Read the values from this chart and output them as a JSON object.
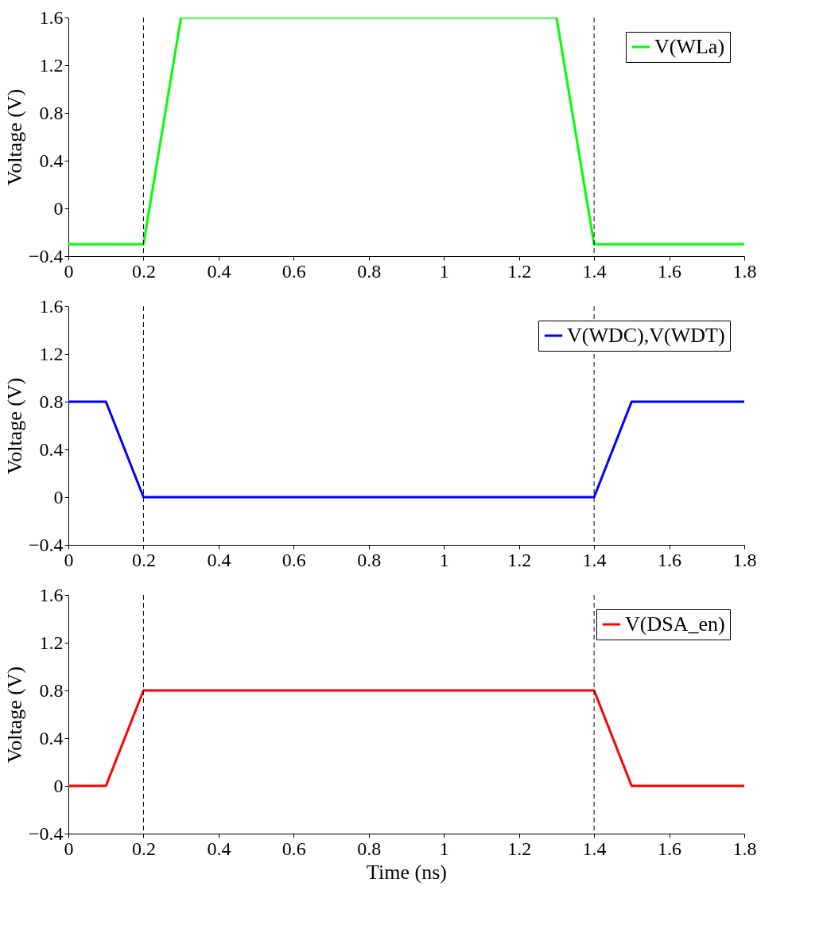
{
  "chart_data": [
    {
      "type": "line",
      "ylabel": "Voltage (V)",
      "x": [
        0,
        0.2,
        0.3,
        1.3,
        1.4,
        1.8
      ],
      "series": [
        {
          "name": "V(WLa)",
          "color": "#00ff00",
          "values": [
            -0.3,
            -0.3,
            1.6,
            1.6,
            -0.3,
            -0.3
          ]
        }
      ],
      "xlim": [
        0,
        1.8
      ],
      "ylim": [
        -0.4,
        1.6
      ],
      "xticks": [
        0,
        0.2,
        0.4,
        0.6,
        0.8,
        1,
        1.2,
        1.4,
        1.6,
        1.8
      ],
      "yticks": [
        -0.4,
        0,
        0.4,
        0.8,
        1.2,
        1.6
      ],
      "ref_lines": [
        {
          "axis": "x",
          "value": 0.2,
          "color": "#000000",
          "line_style": "dashed"
        },
        {
          "axis": "x",
          "value": 1.4,
          "color": "#000000",
          "line_style": "dashed"
        }
      ],
      "grid": false,
      "legend": "top right",
      "line_style": "solid",
      "marker": "none"
    },
    {
      "type": "line",
      "ylabel": "Voltage (V)",
      "x": [
        0,
        0.1,
        0.2,
        1.4,
        1.5,
        1.8
      ],
      "series": [
        {
          "name": "V(WDC),V(WDT)",
          "color": "#0000ff",
          "values": [
            0.8,
            0.8,
            0,
            0,
            0.8,
            0.8
          ]
        }
      ],
      "xlim": [
        0,
        1.8
      ],
      "ylim": [
        -0.4,
        1.6
      ],
      "xticks": [
        0,
        0.2,
        0.4,
        0.6,
        0.8,
        1,
        1.2,
        1.4,
        1.6,
        1.8
      ],
      "yticks": [
        -0.4,
        0,
        0.4,
        0.8,
        1.2,
        1.6
      ],
      "ref_lines": [
        {
          "axis": "x",
          "value": 0.2,
          "color": "#000000",
          "line_style": "dashed"
        },
        {
          "axis": "x",
          "value": 1.4,
          "color": "#000000",
          "line_style": "dashed"
        }
      ],
      "grid": false,
      "legend": "top right",
      "line_style": "solid",
      "marker": "none"
    },
    {
      "type": "line",
      "xlabel": "Time (ns)",
      "ylabel": "Voltage (V)",
      "x": [
        0,
        0.1,
        0.2,
        1.4,
        1.5,
        1.8
      ],
      "series": [
        {
          "name": "V(DSA_en)",
          "color": "#ff0000",
          "values": [
            0,
            0,
            0.8,
            0.8,
            0,
            0
          ]
        }
      ],
      "xlim": [
        0,
        1.8
      ],
      "ylim": [
        -0.4,
        1.6
      ],
      "xticks": [
        0,
        0.2,
        0.4,
        0.6,
        0.8,
        1,
        1.2,
        1.4,
        1.6,
        1.8
      ],
      "yticks": [
        -0.4,
        0,
        0.4,
        0.8,
        1.2,
        1.6
      ],
      "ref_lines": [
        {
          "axis": "x",
          "value": 0.2,
          "color": "#000000",
          "line_style": "dashed"
        },
        {
          "axis": "x",
          "value": 1.4,
          "color": "#000000",
          "line_style": "dashed"
        }
      ],
      "grid": false,
      "legend": "top right",
      "line_style": "solid",
      "marker": "none"
    }
  ]
}
